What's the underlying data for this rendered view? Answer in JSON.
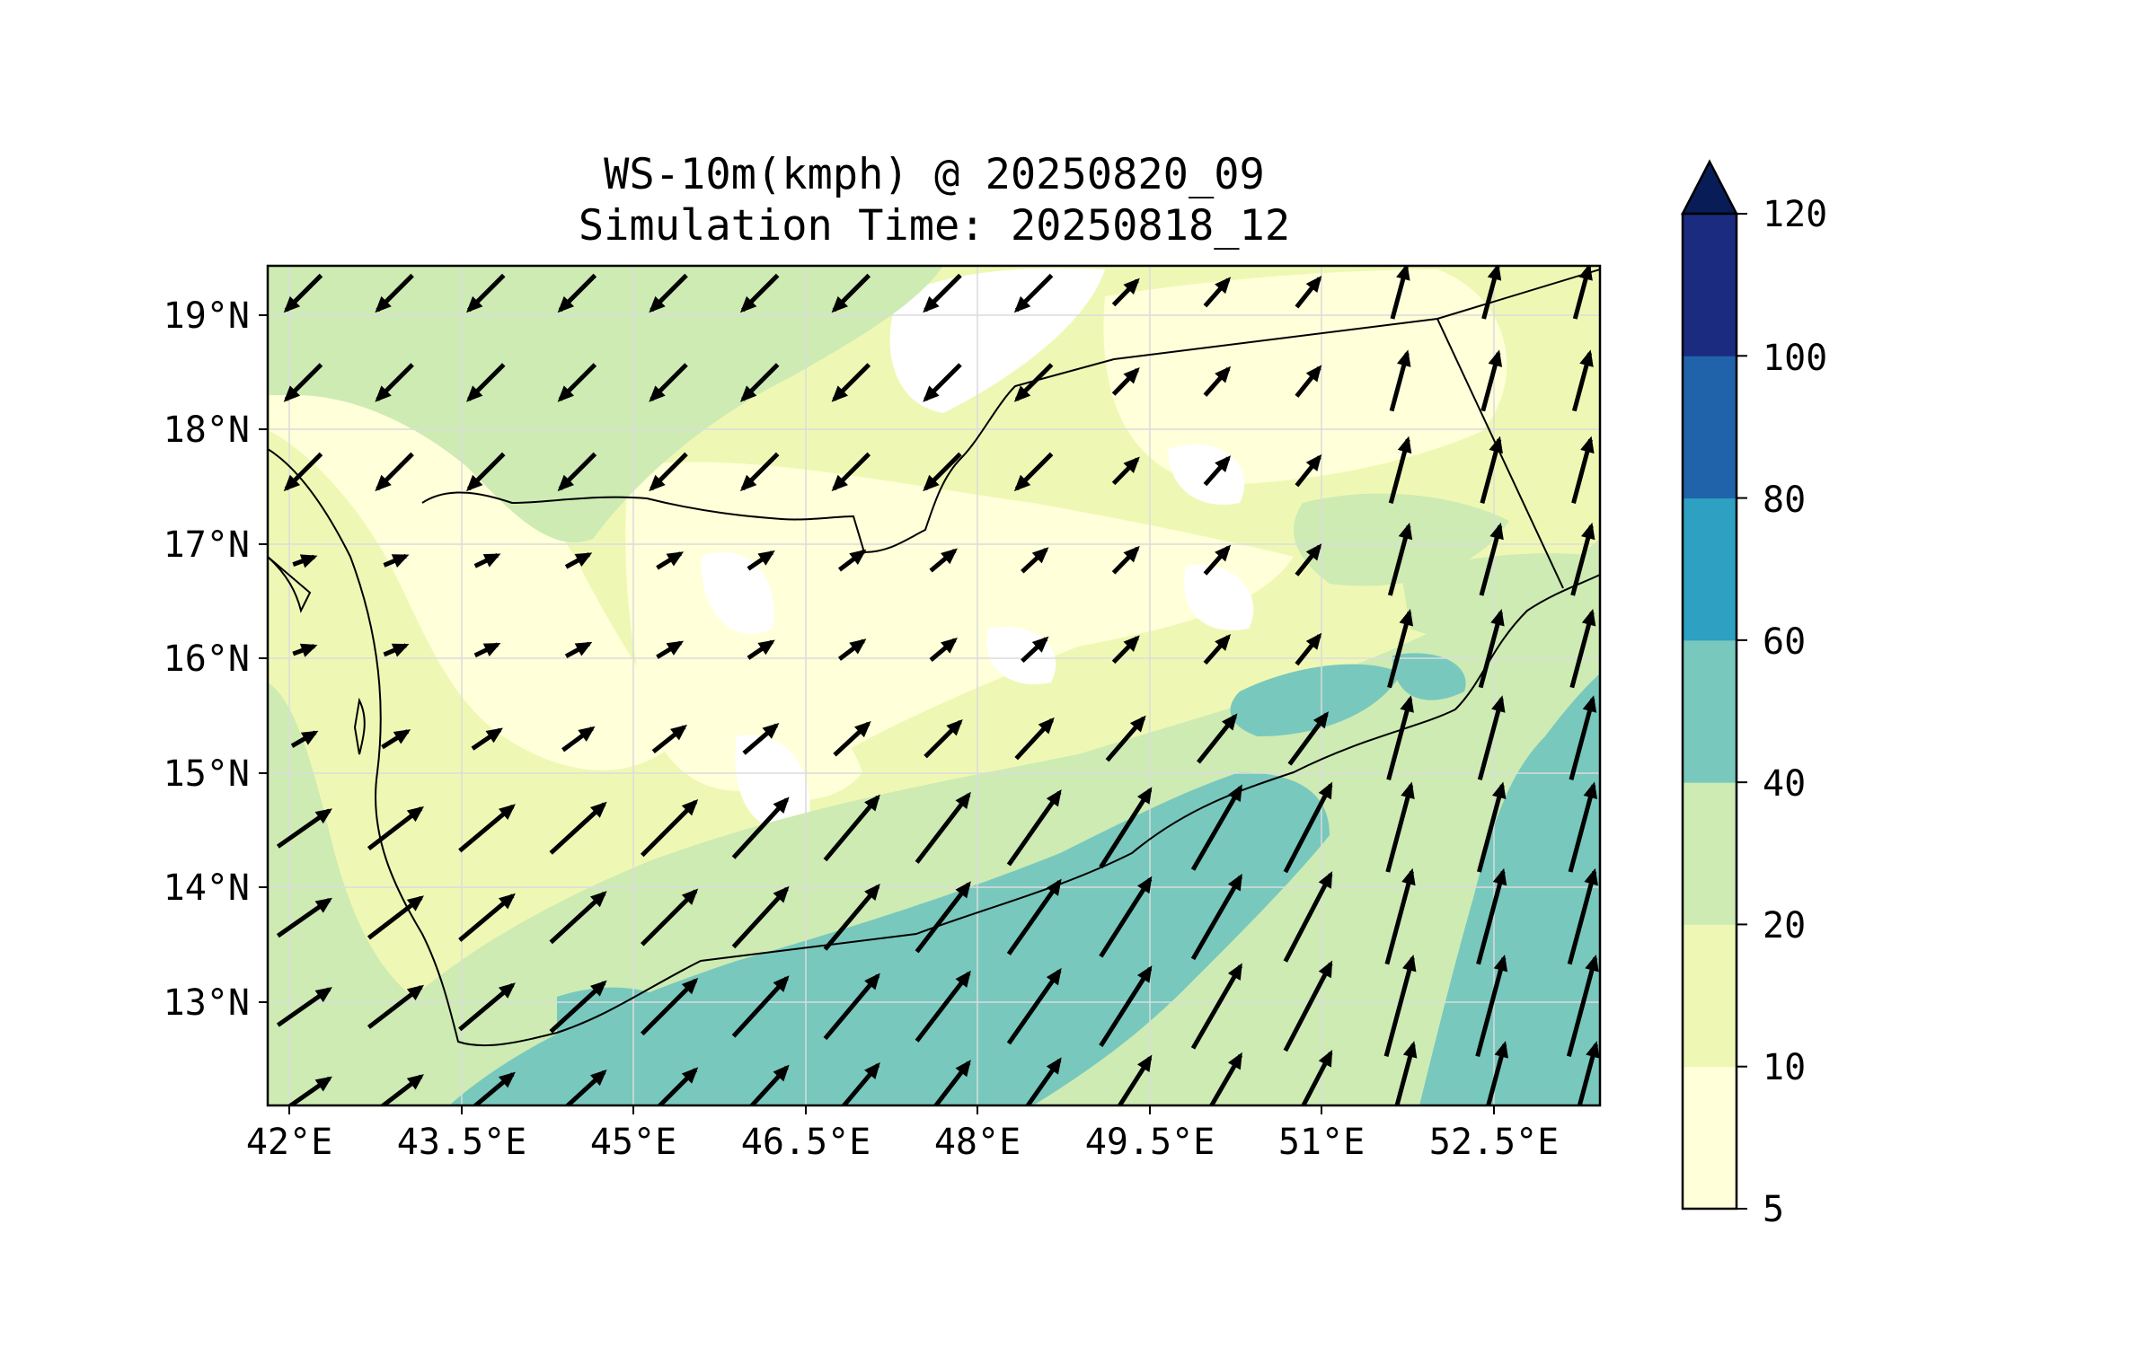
{
  "title_line1": "WS-10m(kmph) @ 20250820_09",
  "title_line2": "Simulation Time: 20250818_12",
  "x_ticks": [
    "42°E",
    "43.5°E",
    "45°E",
    "46.5°E",
    "48°E",
    "49.5°E",
    "51°E",
    "52.5°E"
  ],
  "y_ticks": [
    "13°N",
    "14°N",
    "15°N",
    "16°N",
    "17°N",
    "18°N",
    "19°N"
  ],
  "colorbar": {
    "labels": [
      "5",
      "10",
      "20",
      "40",
      "60",
      "80",
      "100",
      "120"
    ],
    "colors": [
      "#ffffd9",
      "#eef8b4",
      "#cdebb3",
      "#78c8bd",
      "#2ea0c1",
      "#2163aa",
      "#1b2c80",
      "#081d58"
    ],
    "extend": "max"
  },
  "map": {
    "fill_colors": {
      "lt5": "#ffffff",
      "5_10": "#ffffd9",
      "10_20": "#eef8b4",
      "20_40": "#cdebb3",
      "40_60": "#78c8bd"
    },
    "coast_color": "#000000",
    "arrow_color": "#000000",
    "gridlines": true
  }
}
